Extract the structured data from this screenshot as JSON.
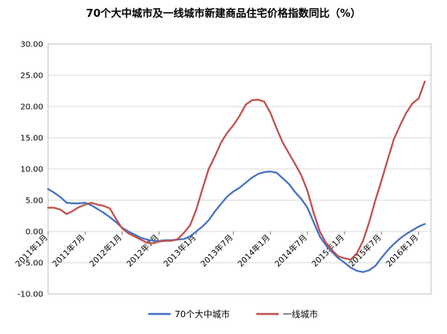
{
  "chart_data": {
    "type": "line",
    "title": "70个大中城市及一线城市新建商品住宅价格指数同比（%）",
    "xlabel": "",
    "ylabel": "",
    "ylim": [
      -10,
      30
    ],
    "yticks": [
      "30.00",
      "25.00",
      "20.00",
      "15.00",
      "10.00",
      "5.00",
      "0.00",
      "-5.00",
      "-10.00"
    ],
    "ytick_values": [
      30,
      25,
      20,
      15,
      10,
      5,
      0,
      -5,
      -10
    ],
    "grid": "y",
    "legend_position": "bottom",
    "x_tick_labels": [
      "2011年1月",
      "2011年7月",
      "2012年1月",
      "2012年7月",
      "2013年1月",
      "2013年7月",
      "2014年1月",
      "2014年7月",
      "2015年1月",
      "2015年7月",
      "2016年1月"
    ],
    "x_tick_months": [
      0,
      6,
      12,
      18,
      24,
      30,
      36,
      42,
      48,
      54,
      60
    ],
    "x_month_range": [
      0,
      62
    ],
    "series": [
      {
        "name": "70个大中城市",
        "color": "#4472C4",
        "values": [
          6.8,
          6.2,
          5.5,
          4.6,
          4.5,
          4.5,
          4.6,
          4.2,
          3.6,
          3.0,
          2.3,
          1.5,
          0.6,
          0.0,
          -0.5,
          -1.0,
          -1.3,
          -1.5,
          -1.5,
          -1.4,
          -1.4,
          -1.3,
          -1.2,
          -0.8,
          0.0,
          0.8,
          1.8,
          3.2,
          4.4,
          5.6,
          6.4,
          7.0,
          7.8,
          8.6,
          9.2,
          9.5,
          9.6,
          9.4,
          8.5,
          7.6,
          6.3,
          5.2,
          3.8,
          1.5,
          -0.8,
          -2.2,
          -3.3,
          -4.3,
          -5.0,
          -5.8,
          -6.3,
          -6.5,
          -6.2,
          -5.5,
          -4.2,
          -3.0,
          -2.0,
          -1.1,
          -0.4,
          0.2,
          0.8,
          1.2
        ]
      },
      {
        "name": "一线城市",
        "color": "#C0504D",
        "values": [
          3.8,
          3.8,
          3.5,
          2.8,
          3.3,
          3.9,
          4.3,
          4.6,
          4.3,
          4.1,
          3.7,
          2.0,
          0.5,
          -0.3,
          -0.8,
          -1.3,
          -1.8,
          -1.9,
          -1.6,
          -1.5,
          -1.5,
          -1.2,
          -0.2,
          1.0,
          3.5,
          6.8,
          10.0,
          12.0,
          14.2,
          15.8,
          17.0,
          18.5,
          20.3,
          21.0,
          21.1,
          20.8,
          19.0,
          16.5,
          14.2,
          12.5,
          10.8,
          9.0,
          6.5,
          3.0,
          0.0,
          -1.8,
          -3.0,
          -4.0,
          -4.3,
          -4.5,
          -3.5,
          -1.5,
          1.5,
          5.0,
          8.2,
          11.5,
          14.8,
          17.0,
          19.0,
          20.5,
          21.3,
          24.0
        ]
      }
    ]
  }
}
